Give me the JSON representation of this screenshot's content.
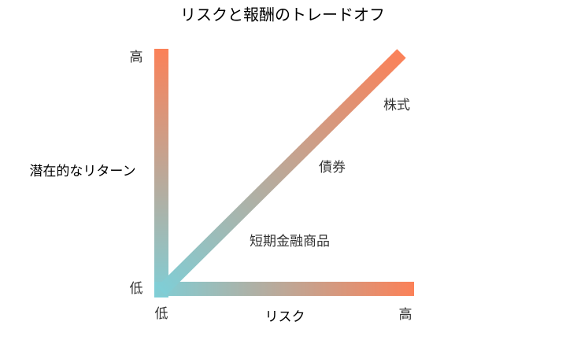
{
  "title": "リスクと報酬のトレードオフ",
  "y_axis": {
    "label": "潜在的なリターン",
    "high": "高",
    "low": "低"
  },
  "x_axis": {
    "label": "リスク",
    "low": "低",
    "high": "高"
  },
  "items": [
    "株式",
    "債券",
    "短期金融商品"
  ]
}
